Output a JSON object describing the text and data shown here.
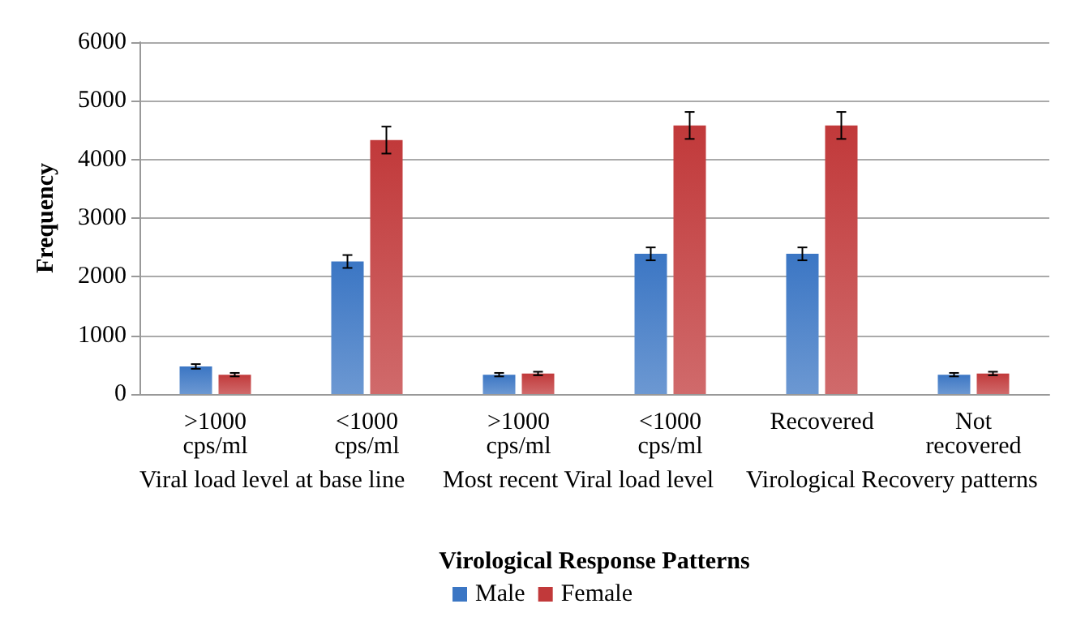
{
  "chart_data": {
    "type": "bar",
    "ylabel": "Frequency",
    "xlabel": "Virological Response Patterns",
    "categories": [
      ">1000\ncps/ml",
      "<1000\ncps/ml",
      ">1000\ncps/ml",
      "<1000\ncps/ml",
      "Recovered",
      "Not\nrecovered"
    ],
    "series": [
      {
        "name": "Male",
        "color": "#3b76c4",
        "values": [
          470,
          2260,
          330,
          2390,
          2390,
          330
        ],
        "errors": [
          40,
          110,
          30,
          110,
          110,
          30
        ]
      },
      {
        "name": "Female",
        "color": "#c1393a",
        "values": [
          330,
          4330,
          350,
          4580,
          4580,
          350
        ],
        "errors": [
          30,
          230,
          30,
          230,
          230,
          30
        ]
      }
    ],
    "annotations": [
      "Viral load level at base line",
      "Most recent Viral load level",
      "Virological Recovery patterns"
    ],
    "ylim": [
      0,
      6000
    ],
    "yticks": [
      0,
      1000,
      2000,
      3000,
      4000,
      5000,
      6000
    ],
    "grid": "y",
    "legend": "bottom"
  }
}
